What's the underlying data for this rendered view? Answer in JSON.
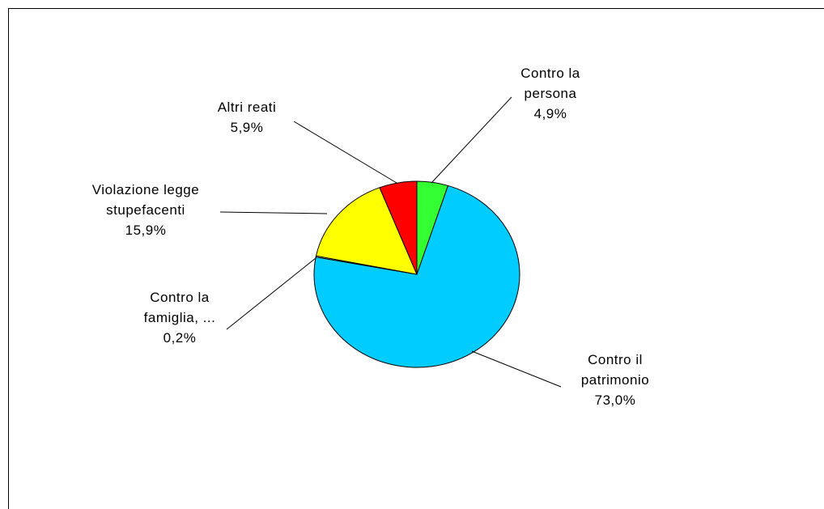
{
  "chart_data": {
    "type": "pie",
    "categories": [
      "Contro la persona",
      "Contro il patrimonio",
      "Contro la famiglia, ...",
      "Violazione legge stupefacenti",
      "Altri reati"
    ],
    "values": [
      4.9,
      73.0,
      0.2,
      15.9,
      5.9
    ],
    "value_labels": [
      "4,9%",
      "73,0%",
      "0,2%",
      "15,9%",
      "5,9%"
    ],
    "colors": [
      "#33ff33",
      "#00ccff",
      "#ffffff",
      "#ffff00",
      "#ff0000"
    ]
  }
}
